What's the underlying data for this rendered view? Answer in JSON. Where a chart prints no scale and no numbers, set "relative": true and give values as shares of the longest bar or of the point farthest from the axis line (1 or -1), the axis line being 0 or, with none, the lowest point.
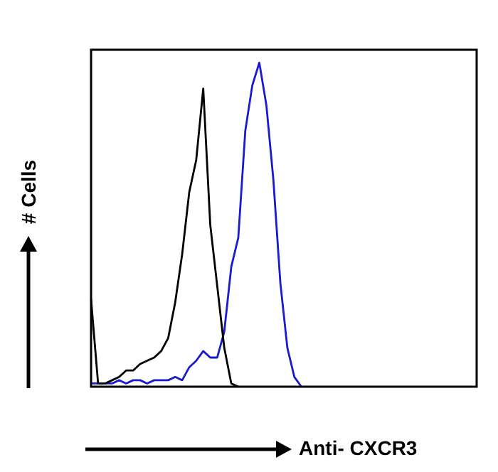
{
  "chart_data": {
    "type": "line",
    "xlabel": "Anti- CXCR3",
    "ylabel": "# Cells",
    "relative": true,
    "marker": "none",
    "categories": [
      null,
      null,
      null,
      null,
      null,
      null,
      null,
      null,
      null,
      null,
      null,
      null,
      null,
      null,
      null,
      null,
      null,
      null,
      null,
      null,
      null,
      null,
      null,
      null,
      null,
      null,
      null,
      null,
      null,
      null,
      null,
      null,
      null,
      null,
      null,
      null,
      null,
      null,
      null,
      null,
      null,
      null,
      null,
      null,
      null,
      null,
      null,
      null,
      null,
      null,
      null,
      null,
      null,
      null,
      null,
      null
    ],
    "series": [
      {
        "color": "#000000",
        "values": [
          0.27,
          0.01,
          0.01,
          0.02,
          0.03,
          0.05,
          0.05,
          0.07,
          0.08,
          0.09,
          0.11,
          0.15,
          0.26,
          0.41,
          0.6,
          0.7,
          0.92,
          0.5,
          0.31,
          0.12,
          0.01,
          0,
          null,
          null,
          null,
          null,
          null,
          null,
          null,
          null,
          null,
          null,
          null,
          null,
          null,
          null,
          null,
          null,
          null,
          null,
          null,
          null,
          null,
          null,
          null,
          null,
          null,
          null,
          null,
          null,
          null,
          null,
          null,
          null,
          null,
          null
        ]
      },
      {
        "color": "#1a1ad0",
        "values": [
          0.01,
          0.01,
          0.01,
          0.01,
          0.02,
          0.01,
          0.02,
          0.02,
          0.01,
          0.02,
          0.02,
          0.02,
          0.03,
          0.02,
          0.06,
          0.08,
          0.11,
          0.09,
          0.09,
          0.17,
          0.37,
          0.46,
          0.79,
          0.93,
          1,
          0.87,
          0.64,
          0.32,
          0.12,
          0.03,
          0,
          null,
          null,
          null,
          null,
          null,
          null,
          null,
          null,
          null,
          null,
          null,
          null,
          null,
          null,
          null,
          null,
          null,
          null,
          null,
          null,
          null,
          null,
          null,
          null,
          null
        ]
      }
    ]
  }
}
